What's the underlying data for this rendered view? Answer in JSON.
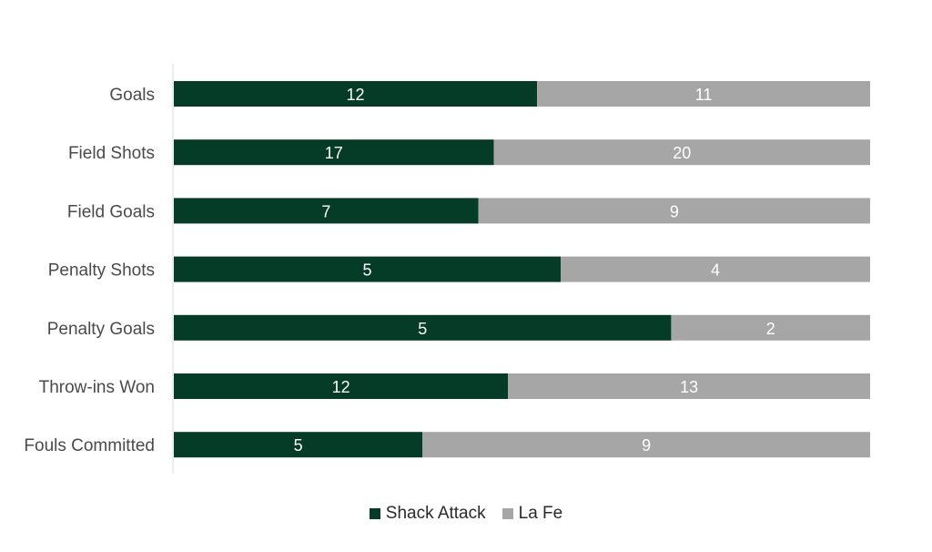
{
  "chart_data": {
    "type": "bar",
    "orientation": "horizontal",
    "stacking": "percent",
    "categories": [
      "Goals",
      "Field Shots",
      "Field Goals",
      "Penalty Shots",
      "Penalty Goals",
      "Throw-ins Won",
      "Fouls Committed"
    ],
    "series": [
      {
        "name": "Shack Attack",
        "color": "#053c27",
        "values": [
          12,
          17,
          7,
          5,
          5,
          12,
          5
        ]
      },
      {
        "name": "La Fe",
        "color": "#a6a6a6",
        "values": [
          11,
          20,
          9,
          4,
          2,
          13,
          9
        ]
      }
    ],
    "title": "",
    "xlabel": "",
    "ylabel": "",
    "grid": false,
    "legend_position": "bottom",
    "data_labels": true
  }
}
